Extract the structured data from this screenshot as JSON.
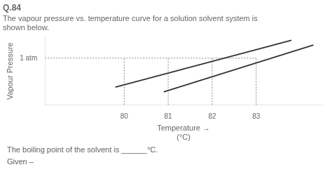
{
  "chart_data": {
    "type": "line",
    "title": "Q.84",
    "subtitle": "The vapour pressure vs. temperature curve for a solution solvent system is\nshown below.",
    "xlabel": [
      "Temperature →",
      "(°C)"
    ],
    "ylabel": "Vapour Pressure",
    "xlim": [
      78.2,
      84.5
    ],
    "ylim": [
      0,
      1.45
    ],
    "xticks": [
      80,
      81,
      82,
      83
    ],
    "yticks": [
      {
        "value": 1.0,
        "label": "1 atm"
      }
    ],
    "grid": false,
    "series": [
      {
        "x": [
          79.8,
          83.8
        ],
        "values": [
          0.38,
          1.38
        ],
        "color": "#333333"
      },
      {
        "x": [
          80.9,
          84.3
        ],
        "values": [
          0.28,
          1.28
        ],
        "color": "#333333"
      },
      {
        "x": [
          78.2,
          83
        ],
        "values": [
          1.0,
          1.0
        ],
        "color": "#888888",
        "line_style": "dotted"
      },
      {
        "x": [
          80,
          80
        ],
        "values": [
          0,
          1.0
        ],
        "color": "#888888",
        "line_style": "dotted"
      },
      {
        "x": [
          81,
          81
        ],
        "values": [
          0,
          1.0
        ],
        "color": "#888888",
        "line_style": "dotted"
      },
      {
        "x": [
          82,
          82
        ],
        "values": [
          0,
          1.0
        ],
        "color": "#888888",
        "line_style": "dotted"
      },
      {
        "x": [
          83,
          83
        ],
        "values": [
          0,
          1.0
        ],
        "color": "#888888",
        "line_style": "dotted"
      }
    ],
    "annotations": [
      "The boiling point of the solvent is ______°C.",
      "Given –"
    ]
  }
}
